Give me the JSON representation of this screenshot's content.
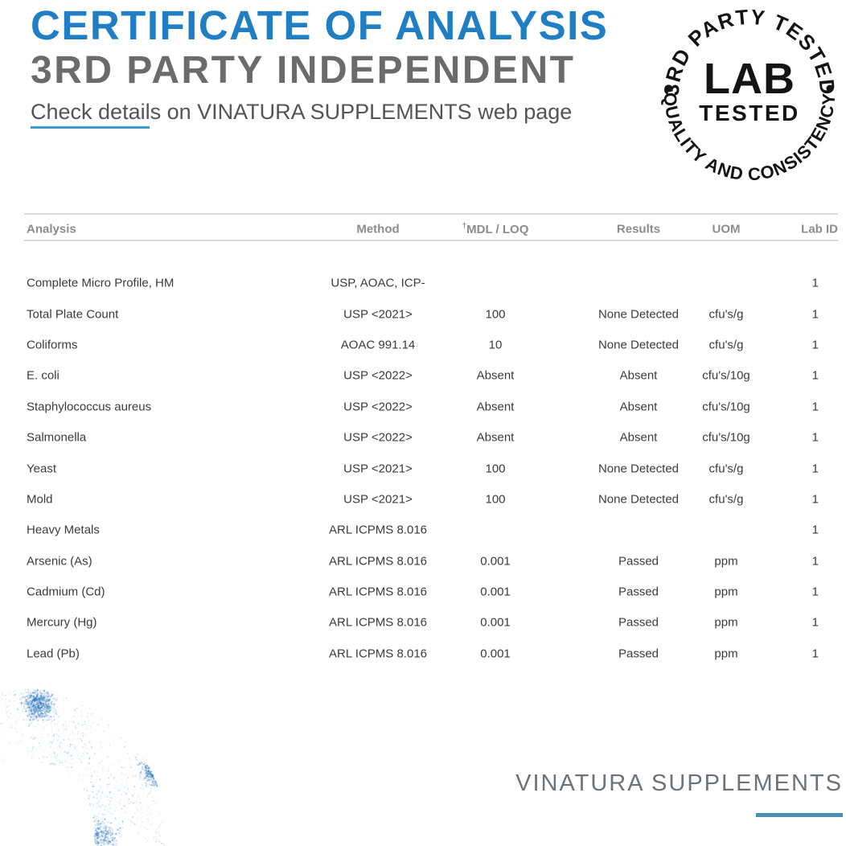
{
  "header": {
    "title": "CERTIFICATE OF ANALYSIS",
    "subtitle": "3RD PARTY INDEPENDENT",
    "note": "Check details on VINATURA SUPPLEMENTS web page"
  },
  "badge": {
    "arc_top": "3RD PARTY TESTED",
    "center_line1": "LAB",
    "center_line2": "TESTED",
    "arc_bottom": "QUALITY AND CONSISTENCY"
  },
  "table": {
    "headers": {
      "analysis": "Analysis",
      "method": "Method",
      "mdl_dagger": "†",
      "mdl": "MDL / LOQ",
      "results": "Results",
      "uom": "UOM",
      "lab_id": "Lab ID"
    },
    "rows": [
      {
        "analysis": "Complete Micro Profile, HM",
        "method": "USP, AOAC, ICP-",
        "mdl": "",
        "results": "",
        "uom": "",
        "lab_id": "1"
      },
      {
        "analysis": "Total Plate Count",
        "method": "USP <2021>",
        "mdl": "100",
        "results": "None Detected",
        "uom": "cfu's/g",
        "lab_id": "1"
      },
      {
        "analysis": "Coliforms",
        "method": "AOAC 991.14",
        "mdl": "10",
        "results": "None Detected",
        "uom": "cfu's/g",
        "lab_id": "1"
      },
      {
        "analysis": "E. coli",
        "method": "USP <2022>",
        "mdl": "Absent",
        "results": "Absent",
        "uom": "cfu's/10g",
        "lab_id": "1"
      },
      {
        "analysis": "Staphylococcus aureus",
        "method": "USP <2022>",
        "mdl": "Absent",
        "results": "Absent",
        "uom": "cfu's/10g",
        "lab_id": "1"
      },
      {
        "analysis": "Salmonella",
        "method": "USP <2022>",
        "mdl": "Absent",
        "results": "Absent",
        "uom": "cfu's/10g",
        "lab_id": "1"
      },
      {
        "analysis": "Yeast",
        "method": "USP <2021>",
        "mdl": "100",
        "results": "None Detected",
        "uom": "cfu's/g",
        "lab_id": "1"
      },
      {
        "analysis": "Mold",
        "method": "USP <2021>",
        "mdl": "100",
        "results": "None Detected",
        "uom": "cfu's/g",
        "lab_id": "1"
      },
      {
        "analysis": "Heavy Metals",
        "method": "ARL ICPMS 8.016",
        "mdl": "",
        "results": "",
        "uom": "",
        "lab_id": "1"
      },
      {
        "analysis": "Arsenic (As)",
        "method": "ARL ICPMS 8.016",
        "mdl": "0.001",
        "results": "Passed",
        "uom": "ppm",
        "lab_id": "1"
      },
      {
        "analysis": "Cadmium (Cd)",
        "method": "ARL ICPMS 8.016",
        "mdl": "0.001",
        "results": "Passed",
        "uom": "ppm",
        "lab_id": "1"
      },
      {
        "analysis": "Mercury (Hg)",
        "method": "ARL ICPMS 8.016",
        "mdl": "0.001",
        "results": "Passed",
        "uom": "ppm",
        "lab_id": "1"
      },
      {
        "analysis": "Lead (Pb)",
        "method": "ARL ICPMS 8.016",
        "mdl": "0.001",
        "results": "Passed",
        "uom": "ppm",
        "lab_id": "1"
      }
    ]
  },
  "footer": {
    "brand": "VINATURA SUPPLEMENTS"
  },
  "colors": {
    "accent_blue": "#1f7ec4",
    "underline_blue": "#3f9ad2",
    "footer_line_blue": "#4b8fb2",
    "subtitle_gray": "#6b6b6b",
    "table_text": "#3b3b3b",
    "badge_black": "#141414"
  }
}
